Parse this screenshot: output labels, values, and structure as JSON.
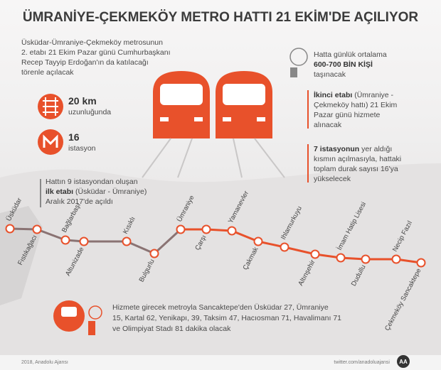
{
  "title": "ÜMRANİYE-ÇEKMEKÖY METRO HATTI 21 EKİM'DE AÇILIYOR",
  "intro": [
    "Üsküdar-Ümraniye-Çekmeköy metrosunun",
    "2. etabı 21 Ekim Pazar günü Cumhurbaşkanı",
    "Recep Tayyip Erdoğan'ın da katılacağı",
    "törenle açılacak"
  ],
  "length": {
    "value": "20 km",
    "label": "uzunluğunda"
  },
  "stations_count": {
    "value": "16",
    "label": "istasyon"
  },
  "passengers": {
    "line1": "Hatta günlük ortalama",
    "value": "600-700 BİN KİŞİ",
    "line3": "taşınacak"
  },
  "second_stage": {
    "bold": "İkinci etabı",
    "lines": [
      " (Ümraniye -",
      "Çekmeköy hattı) 21 Ekim",
      "Pazar günü hizmete",
      "alınacak"
    ]
  },
  "seven_stations": {
    "bold": "7 istasyonun",
    "lines": [
      " yer aldığı",
      "kısmın açılmasıyla, hattaki",
      "toplam durak sayısı 16'ya",
      "yükselecek"
    ]
  },
  "first_stage": {
    "line1": "Hattın 9 istasyondan oluşan",
    "bold": "ilk etabı",
    "line2": " (Üsküdar - Ümraniye)",
    "line3": "Aralık 2017'de açıldı"
  },
  "stations": [
    "Üsküdar",
    "Fıstıkağacı",
    "Bağlarbaşı",
    "Altunizade",
    "Kısıklı",
    "Bulgurlu",
    "Ümraniye",
    "Çarşı",
    "Yamanevler",
    "Çakmak",
    "Ihlamurkuyu",
    "Altınşehir",
    "İmam Hatip Lisesi",
    "Dudullu",
    "Necip Fazıl",
    "Çekmeköy Sancaktepe"
  ],
  "travel_times": [
    "Hizmete girecek metroyla Sancaktepe'den Üsküdar 27, Ümraniye",
    "15, Kartal 62, Yenikapı, 39, Taksim 47, Hacıosman 71, Havalimanı 71",
    "ve Olimpiyat Stadı 81 dakika olacak"
  ],
  "footer": {
    "left": "2018, Anadolu Ajansı",
    "right": "twitter.com/anadoluajansi",
    "logo": "AA"
  }
}
